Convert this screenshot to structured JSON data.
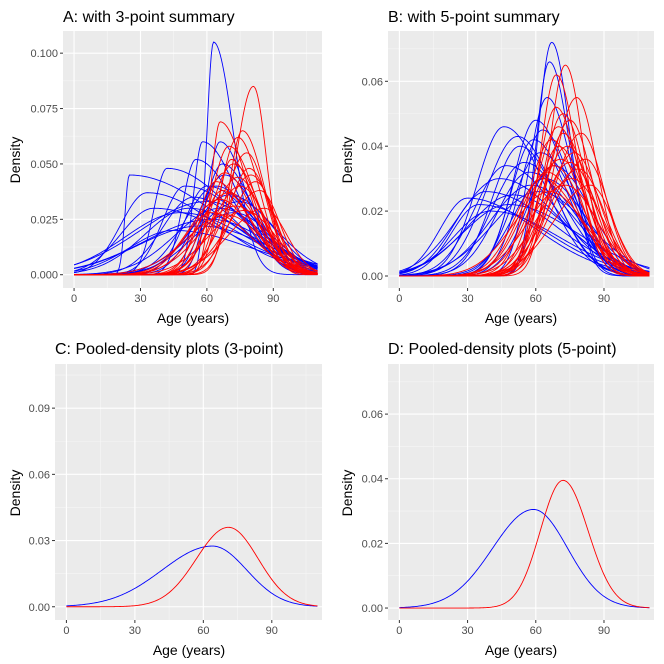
{
  "chart_data": [
    {
      "type": "line",
      "title": "A: with 3-point summary",
      "xlabel": "Age (years)",
      "ylabel": "Density",
      "xlim": [
        -5,
        112
      ],
      "ylim": [
        -0.006,
        0.11
      ],
      "xticks": [
        0,
        30,
        60,
        90
      ],
      "yticks": [
        0.0,
        0.025,
        0.05,
        0.075,
        0.1
      ],
      "ytick_labels": [
        "0.000",
        "0.025",
        "0.050",
        "0.075",
        "0.100"
      ],
      "grid": true,
      "colors": {
        "group1": "#0000ff",
        "group2": "#ff0000"
      },
      "note": "Many individual density curves per group (approximate skewed shapes)",
      "series": [
        {
          "name": "blue",
          "color": "#0000ff",
          "curves": [
            {
              "mode": 63,
              "peak": 0.105,
              "left": 3,
              "right": 9
            },
            {
              "mode": 25,
              "peak": 0.045,
              "left": 2,
              "right": 40
            },
            {
              "mode": 42,
              "peak": 0.048,
              "left": 6,
              "right": 30
            },
            {
              "mode": 33,
              "peak": 0.037,
              "left": 12,
              "right": 32
            },
            {
              "mode": 50,
              "peak": 0.04,
              "left": 10,
              "right": 28
            },
            {
              "mode": 55,
              "peak": 0.052,
              "left": 6,
              "right": 18
            },
            {
              "mode": 58,
              "peak": 0.06,
              "left": 4,
              "right": 16
            },
            {
              "mode": 66,
              "peak": 0.06,
              "left": 6,
              "right": 12
            },
            {
              "mode": 60,
              "peak": 0.033,
              "left": 30,
              "right": 24
            },
            {
              "mode": 64,
              "peak": 0.04,
              "left": 14,
              "right": 18
            },
            {
              "mode": 68,
              "peak": 0.045,
              "left": 12,
              "right": 15
            },
            {
              "mode": 52,
              "peak": 0.03,
              "left": 20,
              "right": 26
            },
            {
              "mode": 48,
              "peak": 0.028,
              "left": 25,
              "right": 30
            },
            {
              "mode": 70,
              "peak": 0.036,
              "left": 16,
              "right": 20
            },
            {
              "mode": 62,
              "peak": 0.025,
              "left": 30,
              "right": 25
            },
            {
              "mode": 57,
              "peak": 0.022,
              "left": 28,
              "right": 30
            },
            {
              "mode": 66,
              "peak": 0.03,
              "left": 20,
              "right": 20
            },
            {
              "mode": 45,
              "peak": 0.02,
              "left": 20,
              "right": 35
            },
            {
              "mode": 72,
              "peak": 0.028,
              "left": 18,
              "right": 18
            },
            {
              "mode": 60,
              "peak": 0.04,
              "left": 10,
              "right": 22
            },
            {
              "mode": 36,
              "peak": 0.03,
              "left": 15,
              "right": 35
            },
            {
              "mode": 54,
              "peak": 0.035,
              "left": 14,
              "right": 22
            },
            {
              "mode": 67,
              "peak": 0.05,
              "left": 8,
              "right": 14
            },
            {
              "mode": 75,
              "peak": 0.033,
              "left": 20,
              "right": 16
            }
          ]
        },
        {
          "name": "red",
          "color": "#ff0000",
          "curves": [
            {
              "mode": 81,
              "peak": 0.085,
              "left": 8,
              "right": 6
            },
            {
              "mode": 76,
              "peak": 0.065,
              "left": 6,
              "right": 10
            },
            {
              "mode": 66,
              "peak": 0.069,
              "left": 4,
              "right": 12
            },
            {
              "mode": 74,
              "peak": 0.062,
              "left": 8,
              "right": 10
            },
            {
              "mode": 70,
              "peak": 0.058,
              "left": 8,
              "right": 12
            },
            {
              "mode": 78,
              "peak": 0.055,
              "left": 10,
              "right": 9
            },
            {
              "mode": 72,
              "peak": 0.05,
              "left": 10,
              "right": 12
            },
            {
              "mode": 68,
              "peak": 0.046,
              "left": 10,
              "right": 13
            },
            {
              "mode": 80,
              "peak": 0.045,
              "left": 12,
              "right": 10
            },
            {
              "mode": 64,
              "peak": 0.042,
              "left": 8,
              "right": 15
            },
            {
              "mode": 75,
              "peak": 0.04,
              "left": 12,
              "right": 12
            },
            {
              "mode": 70,
              "peak": 0.037,
              "left": 14,
              "right": 14
            },
            {
              "mode": 84,
              "peak": 0.038,
              "left": 14,
              "right": 9
            },
            {
              "mode": 66,
              "peak": 0.034,
              "left": 14,
              "right": 14
            },
            {
              "mode": 73,
              "peak": 0.031,
              "left": 16,
              "right": 15
            },
            {
              "mode": 77,
              "peak": 0.029,
              "left": 16,
              "right": 14
            },
            {
              "mode": 62,
              "peak": 0.028,
              "left": 12,
              "right": 18
            },
            {
              "mode": 69,
              "peak": 0.027,
              "left": 18,
              "right": 16
            },
            {
              "mode": 86,
              "peak": 0.03,
              "left": 16,
              "right": 10
            },
            {
              "mode": 71,
              "peak": 0.052,
              "left": 6,
              "right": 11
            },
            {
              "mode": 79,
              "peak": 0.048,
              "left": 9,
              "right": 10
            },
            {
              "mode": 67,
              "peak": 0.038,
              "left": 9,
              "right": 14
            },
            {
              "mode": 74,
              "peak": 0.044,
              "left": 11,
              "right": 11
            },
            {
              "mode": 82,
              "peak": 0.042,
              "left": 11,
              "right": 9
            }
          ]
        }
      ]
    },
    {
      "type": "line",
      "title": "B: with 5-point summary",
      "xlabel": "Age (years)",
      "ylabel": "Density",
      "xlim": [
        -5,
        112
      ],
      "ylim": [
        -0.0037,
        0.0755
      ],
      "xticks": [
        0,
        30,
        60,
        90
      ],
      "yticks": [
        0.0,
        0.02,
        0.04,
        0.06
      ],
      "ytick_labels": [
        "0.00",
        "0.02",
        "0.04",
        "0.06"
      ],
      "grid": true,
      "colors": {
        "group1": "#0000ff",
        "group2": "#ff0000"
      },
      "note": "Many individual density curves per group (approximate skewed shapes)",
      "series": [
        {
          "name": "blue",
          "color": "#0000ff",
          "curves": [
            {
              "mode": 67,
              "peak": 0.072,
              "left": 6,
              "right": 8
            },
            {
              "mode": 66,
              "peak": 0.066,
              "left": 6,
              "right": 9
            },
            {
              "mode": 65,
              "peak": 0.055,
              "left": 8,
              "right": 11
            },
            {
              "mode": 46,
              "peak": 0.046,
              "left": 12,
              "right": 18
            },
            {
              "mode": 52,
              "peak": 0.043,
              "left": 14,
              "right": 16
            },
            {
              "mode": 60,
              "peak": 0.048,
              "left": 10,
              "right": 14
            },
            {
              "mode": 63,
              "peak": 0.045,
              "left": 10,
              "right": 13
            },
            {
              "mode": 30,
              "peak": 0.024,
              "left": 12,
              "right": 30
            },
            {
              "mode": 38,
              "peak": 0.026,
              "left": 14,
              "right": 30
            },
            {
              "mode": 44,
              "peak": 0.03,
              "left": 18,
              "right": 26
            },
            {
              "mode": 48,
              "peak": 0.022,
              "left": 20,
              "right": 30
            },
            {
              "mode": 55,
              "peak": 0.035,
              "left": 14,
              "right": 18
            },
            {
              "mode": 58,
              "peak": 0.028,
              "left": 18,
              "right": 20
            },
            {
              "mode": 62,
              "peak": 0.038,
              "left": 12,
              "right": 16
            },
            {
              "mode": 50,
              "peak": 0.025,
              "left": 20,
              "right": 24
            },
            {
              "mode": 40,
              "peak": 0.02,
              "left": 16,
              "right": 30
            },
            {
              "mode": 57,
              "peak": 0.032,
              "left": 14,
              "right": 20
            },
            {
              "mode": 64,
              "peak": 0.03,
              "left": 14,
              "right": 18
            },
            {
              "mode": 68,
              "peak": 0.034,
              "left": 12,
              "right": 16
            },
            {
              "mode": 53,
              "peak": 0.04,
              "left": 12,
              "right": 16
            },
            {
              "mode": 61,
              "peak": 0.026,
              "left": 20,
              "right": 22
            },
            {
              "mode": 35,
              "peak": 0.022,
              "left": 12,
              "right": 30
            },
            {
              "mode": 59,
              "peak": 0.042,
              "left": 10,
              "right": 15
            },
            {
              "mode": 47,
              "peak": 0.034,
              "left": 14,
              "right": 22
            }
          ]
        },
        {
          "name": "red",
          "color": "#ff0000",
          "curves": [
            {
              "mode": 73,
              "peak": 0.065,
              "left": 7,
              "right": 8
            },
            {
              "mode": 69,
              "peak": 0.062,
              "left": 7,
              "right": 9
            },
            {
              "mode": 78,
              "peak": 0.055,
              "left": 10,
              "right": 9
            },
            {
              "mode": 72,
              "peak": 0.05,
              "left": 9,
              "right": 10
            },
            {
              "mode": 75,
              "peak": 0.048,
              "left": 10,
              "right": 10
            },
            {
              "mode": 70,
              "peak": 0.046,
              "left": 10,
              "right": 11
            },
            {
              "mode": 80,
              "peak": 0.044,
              "left": 12,
              "right": 10
            },
            {
              "mode": 67,
              "peak": 0.042,
              "left": 10,
              "right": 12
            },
            {
              "mode": 74,
              "peak": 0.04,
              "left": 12,
              "right": 11
            },
            {
              "mode": 77,
              "peak": 0.038,
              "left": 12,
              "right": 11
            },
            {
              "mode": 71,
              "peak": 0.036,
              "left": 13,
              "right": 12
            },
            {
              "mode": 68,
              "peak": 0.034,
              "left": 13,
              "right": 13
            },
            {
              "mode": 82,
              "peak": 0.036,
              "left": 14,
              "right": 10
            },
            {
              "mode": 65,
              "peak": 0.032,
              "left": 12,
              "right": 14
            },
            {
              "mode": 76,
              "peak": 0.03,
              "left": 15,
              "right": 13
            },
            {
              "mode": 73,
              "peak": 0.028,
              "left": 16,
              "right": 14
            },
            {
              "mode": 63,
              "peak": 0.03,
              "left": 12,
              "right": 16
            },
            {
              "mode": 79,
              "peak": 0.033,
              "left": 14,
              "right": 11
            },
            {
              "mode": 70,
              "peak": 0.04,
              "left": 9,
              "right": 12
            },
            {
              "mode": 66,
              "peak": 0.026,
              "left": 16,
              "right": 16
            },
            {
              "mode": 84,
              "peak": 0.028,
              "left": 16,
              "right": 10
            },
            {
              "mode": 72,
              "peak": 0.044,
              "left": 8,
              "right": 11
            },
            {
              "mode": 75,
              "peak": 0.035,
              "left": 12,
              "right": 12
            },
            {
              "mode": 69,
              "peak": 0.052,
              "left": 8,
              "right": 10
            }
          ]
        }
      ]
    },
    {
      "type": "line",
      "title": "C: Pooled-density plots (3-point)",
      "xlabel": "Age (years)",
      "ylabel": "Density",
      "xlim": [
        -5,
        112
      ],
      "ylim": [
        -0.006,
        0.11
      ],
      "xticks": [
        0,
        30,
        60,
        90
      ],
      "yticks": [
        0.0,
        0.03,
        0.06,
        0.09
      ],
      "ytick_labels": [
        "0.00",
        "0.03",
        "0.06",
        "0.09"
      ],
      "grid": true,
      "series": [
        {
          "name": "blue",
          "color": "#0000ff",
          "curves": [
            {
              "mode": 64,
              "peak": 0.0275,
              "left": 22,
              "right": 15
            }
          ]
        },
        {
          "name": "red",
          "color": "#ff0000",
          "curves": [
            {
              "mode": 71,
              "peak": 0.036,
              "left": 14,
              "right": 13
            }
          ]
        }
      ]
    },
    {
      "type": "line",
      "title": "D: Pooled-density plots (5-point)",
      "xlabel": "Age (years)",
      "ylabel": "Density",
      "xlim": [
        -5,
        112
      ],
      "ylim": [
        -0.0037,
        0.0755
      ],
      "xticks": [
        0,
        30,
        60,
        90
      ],
      "yticks": [
        0.0,
        0.02,
        0.04,
        0.06
      ],
      "ytick_labels": [
        "0.00",
        "0.02",
        "0.04",
        "0.06"
      ],
      "grid": true,
      "series": [
        {
          "name": "blue",
          "color": "#0000ff",
          "curves": [
            {
              "mode": 59,
              "peak": 0.0305,
              "left": 18,
              "right": 15
            }
          ]
        },
        {
          "name": "red",
          "color": "#ff0000",
          "curves": [
            {
              "mode": 72,
              "peak": 0.0395,
              "left": 10,
              "right": 11
            }
          ]
        }
      ]
    }
  ]
}
